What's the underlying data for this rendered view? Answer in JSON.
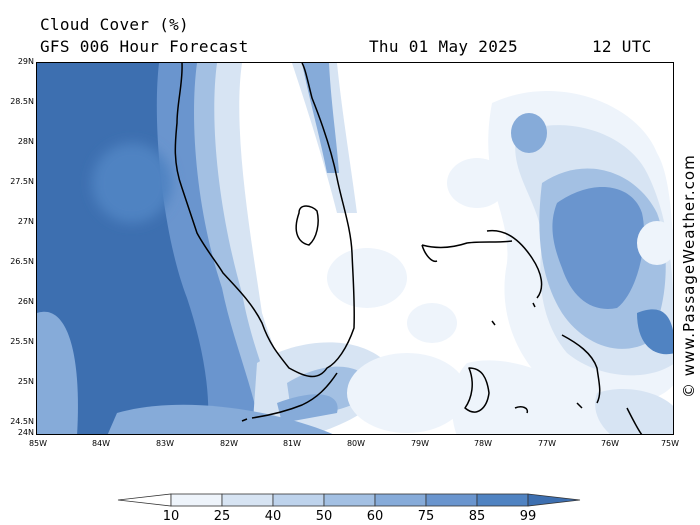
{
  "header": {
    "title": "Cloud Cover (%)",
    "model": "GFS 006 Hour Forecast",
    "date": "Thu 01 May 2025",
    "time": "12 UTC"
  },
  "map": {
    "lat_labels": [
      "29N",
      "28.5N",
      "28N",
      "27.5N",
      "27N",
      "26.5N",
      "26N",
      "25.5N",
      "25N",
      "24.5N",
      "24N"
    ],
    "lon_labels": [
      "85W",
      "84W",
      "83W",
      "82W",
      "81W",
      "80W",
      "79W",
      "78W",
      "77W",
      "76W",
      "75W"
    ],
    "lat_range": [
      24,
      29
    ],
    "lon_range": [
      -85,
      -75
    ],
    "credit": "© www.PassageWeather.com"
  },
  "legend": {
    "labels": [
      "10",
      "25",
      "40",
      "50",
      "60",
      "75",
      "85",
      "99"
    ],
    "colors": [
      "#ffffff",
      "#eef4fb",
      "#d7e4f3",
      "#bed3ec",
      "#a3c0e3",
      "#86abd9",
      "#6a95ce",
      "#5083c2",
      "#3d6fb0"
    ]
  }
}
